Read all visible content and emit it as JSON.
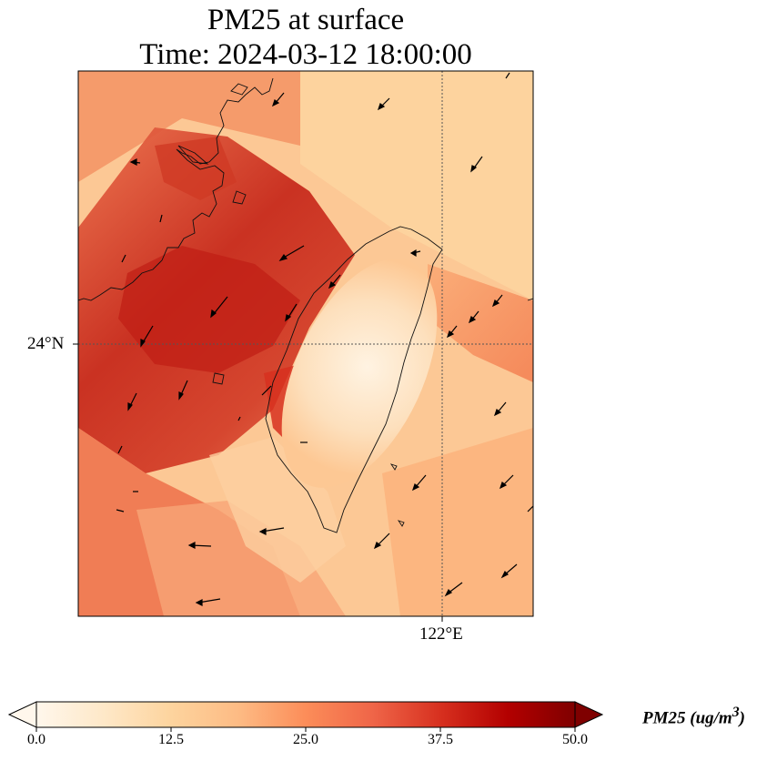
{
  "title": {
    "line1": "PM25 at surface",
    "line2": "Time: 2024-03-12 18:00:00"
  },
  "axes": {
    "lat_label": "24°N",
    "lon_label": "122°E",
    "gridline_style": "dotted"
  },
  "colorbar": {
    "label": "PM25 (ug/m",
    "label_superscript": "3",
    "label_close": ")",
    "ticks": [
      "0.0",
      "12.5",
      "25.0",
      "37.5",
      "50.0"
    ],
    "min": 0,
    "max": 50,
    "extend": "both",
    "colormap": "OrRd",
    "colors": [
      "#fff7ec",
      "#fee8c8",
      "#fdd49e",
      "#fdbb84",
      "#fc8d59",
      "#ef6548",
      "#d7301f",
      "#b30000",
      "#7f0000"
    ]
  }
}
